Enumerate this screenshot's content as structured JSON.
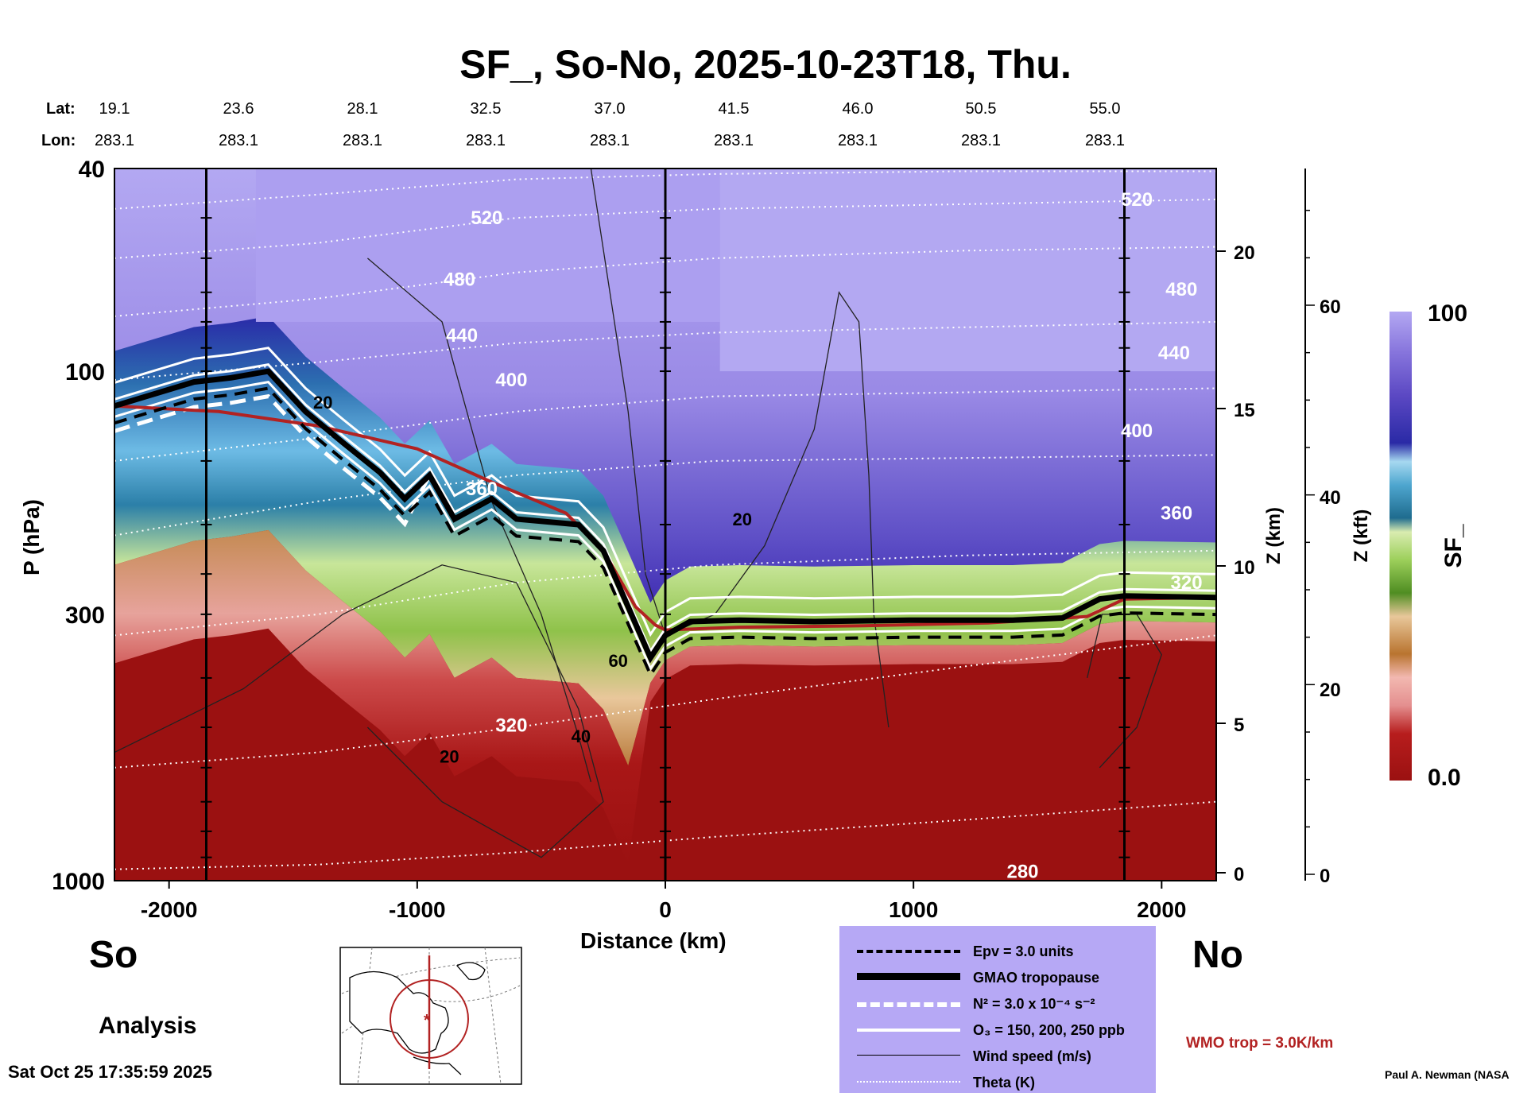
{
  "title": "SF_, So-No, 2025-10-23T18, Thu.",
  "lat_label": "Lat:",
  "lon_label": "Lon:",
  "lats": [
    "19.1",
    "23.6",
    "28.1",
    "32.5",
    "37.0",
    "41.5",
    "46.0",
    "50.5",
    "55.0"
  ],
  "lons": [
    "283.1",
    "283.1",
    "283.1",
    "283.1",
    "283.1",
    "283.1",
    "283.1",
    "283.1",
    "283.1"
  ],
  "left_end": "So",
  "right_end": "No",
  "analysis_label": "Analysis",
  "timestamp": "Sat Oct 25 17:35:59 2025",
  "credit": "Paul A. Newman (NASA",
  "wmo_label": "WMO trop = 3.0K/km",
  "colors": {
    "legend_bg": "#b6a8f5",
    "wmo": "#b22222",
    "tropopause_red": "#b22222"
  },
  "legend": [
    {
      "label": "Epv = 3.0 units",
      "style": "black-dashed"
    },
    {
      "label": "GMAO tropopause",
      "style": "black-thick"
    },
    {
      "label": "N² = 3.0 x 10⁻⁴ s⁻²",
      "style": "white-dashed"
    },
    {
      "label": "O₃ = 150, 200, 250 ppb",
      "style": "white-solid"
    },
    {
      "label": "Wind speed (m/s)",
      "style": "black-thin"
    },
    {
      "label": "Theta (K)",
      "style": "white-dotted"
    }
  ],
  "chart_data": {
    "type": "heatmap",
    "xlabel": "Distance (km)",
    "ylabel": "P (hPa)",
    "y2label": "Z (km)",
    "y3label": "Z (kft)",
    "colorbar_label": "SF_",
    "xlim": [
      -2220,
      2220
    ],
    "x_ticks": [
      -2000,
      -1000,
      0,
      1000,
      2000
    ],
    "x_tick_labels": [
      "-2000",
      "-1000",
      "0",
      "1000",
      "2000"
    ],
    "ylim_hpa": [
      1000,
      40
    ],
    "y_ticks": [
      40,
      100,
      300,
      1000
    ],
    "y_tick_labels": [
      "40",
      "100",
      "300",
      "1000"
    ],
    "z_km_ticks": [
      "0",
      "5",
      "10",
      "15",
      "20"
    ],
    "z_kft_ticks": [
      "0",
      "20",
      "40",
      "60"
    ],
    "colorbar_range": [
      0.0,
      100
    ],
    "colorbar_tick_labels": [
      "0.0",
      "100"
    ],
    "vertical_lines_km": [
      -1850,
      0,
      1850
    ],
    "theta_labels": [
      {
        "text": "520",
        "x": -720,
        "p": 50
      },
      {
        "text": "480",
        "x": -830,
        "p": 66
      },
      {
        "text": "440",
        "x": -820,
        "p": 85
      },
      {
        "text": "400",
        "x": -620,
        "p": 104
      },
      {
        "text": "360",
        "x": -740,
        "p": 170
      },
      {
        "text": "320",
        "x": -620,
        "p": 495
      },
      {
        "text": "280",
        "x": 1440,
        "p": 960
      },
      {
        "text": "520",
        "x": 1900,
        "p": 46
      },
      {
        "text": "480",
        "x": 2080,
        "p": 69
      },
      {
        "text": "440",
        "x": 2050,
        "p": 92
      },
      {
        "text": "400",
        "x": 1900,
        "p": 131
      },
      {
        "text": "360",
        "x": 2060,
        "p": 190
      },
      {
        "text": "320",
        "x": 2100,
        "p": 260
      }
    ],
    "wind_labels": [
      {
        "text": "20",
        "x": -1380,
        "p": 115
      },
      {
        "text": "20",
        "x": 310,
        "p": 195
      },
      {
        "text": "60",
        "x": -190,
        "p": 370
      },
      {
        "text": "40",
        "x": -340,
        "p": 520
      },
      {
        "text": "20",
        "x": -870,
        "p": 570
      }
    ],
    "tropopause_gmao": [
      [
        -2220,
        117
      ],
      [
        -1900,
        105
      ],
      [
        -1750,
        103
      ],
      [
        -1600,
        100
      ],
      [
        -1450,
        120
      ],
      [
        -1300,
        138
      ],
      [
        -1150,
        158
      ],
      [
        -1050,
        178
      ],
      [
        -950,
        160
      ],
      [
        -850,
        195
      ],
      [
        -700,
        178
      ],
      [
        -600,
        195
      ],
      [
        -350,
        200
      ],
      [
        -250,
        225
      ],
      [
        -150,
        290
      ],
      [
        -60,
        365
      ],
      [
        0,
        330
      ],
      [
        100,
        310
      ],
      [
        300,
        308
      ],
      [
        600,
        310
      ],
      [
        1000,
        308
      ],
      [
        1400,
        308
      ],
      [
        1600,
        305
      ],
      [
        1750,
        280
      ],
      [
        1850,
        276
      ],
      [
        2220,
        278
      ]
    ],
    "tropopause_wmo": [
      [
        -2220,
        117
      ],
      [
        -1800,
        120
      ],
      [
        -1400,
        128
      ],
      [
        -1000,
        142
      ],
      [
        -700,
        165
      ],
      [
        -400,
        190
      ],
      [
        -250,
        225
      ],
      [
        -120,
        290
      ],
      [
        -40,
        315
      ],
      [
        0,
        322
      ],
      [
        300,
        318
      ],
      [
        800,
        316
      ],
      [
        1300,
        312
      ],
      [
        1700,
        303
      ],
      [
        1850,
        280
      ],
      [
        2220,
        278
      ]
    ]
  }
}
